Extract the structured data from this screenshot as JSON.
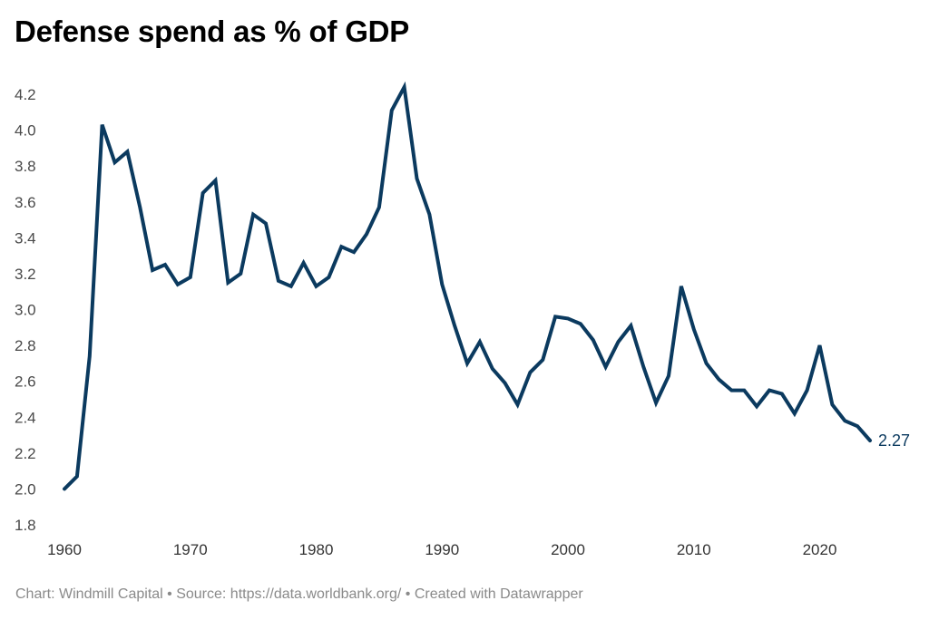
{
  "chart_data": {
    "type": "line",
    "title": "Defense spend as % of GDP",
    "xlabel": "",
    "ylabel": "",
    "ylim": [
      1.8,
      4.2
    ],
    "xlim": [
      1960,
      2024
    ],
    "grid": false,
    "yticks": [
      "4.2",
      "4.0",
      "3.8",
      "3.6",
      "3.4",
      "3.2",
      "3.0",
      "2.8",
      "2.6",
      "2.4",
      "2.2",
      "2.0",
      "1.8"
    ],
    "xticks": [
      "1960",
      "1970",
      "1980",
      "1990",
      "2000",
      "2010",
      "2020"
    ],
    "series": [
      {
        "name": "Defense spend as % of GDP",
        "color": "#0b3a5f",
        "end_label": "2.27",
        "x": [
          1960,
          1961,
          1962,
          1963,
          1964,
          1965,
          1966,
          1967,
          1968,
          1969,
          1970,
          1971,
          1972,
          1973,
          1974,
          1975,
          1976,
          1977,
          1978,
          1979,
          1980,
          1981,
          1982,
          1983,
          1984,
          1985,
          1986,
          1987,
          1988,
          1989,
          1990,
          1991,
          1992,
          1993,
          1994,
          1995,
          1996,
          1997,
          1998,
          1999,
          2000,
          2001,
          2002,
          2003,
          2004,
          2005,
          2006,
          2007,
          2008,
          2009,
          2010,
          2011,
          2012,
          2013,
          2014,
          2015,
          2016,
          2017,
          2018,
          2019,
          2020,
          2021,
          2022,
          2023,
          2024
        ],
        "values": [
          2.0,
          2.07,
          2.74,
          4.03,
          3.82,
          3.88,
          3.57,
          3.22,
          3.25,
          3.14,
          3.18,
          3.65,
          3.72,
          3.15,
          3.2,
          3.53,
          3.48,
          3.16,
          3.13,
          3.26,
          3.13,
          3.18,
          3.35,
          3.32,
          3.42,
          3.57,
          4.11,
          4.24,
          3.73,
          3.53,
          3.14,
          2.91,
          2.7,
          2.82,
          2.67,
          2.59,
          2.47,
          2.65,
          2.72,
          2.96,
          2.95,
          2.92,
          2.83,
          2.68,
          2.82,
          2.91,
          2.68,
          2.48,
          2.63,
          3.13,
          2.89,
          2.7,
          2.61,
          2.55,
          2.55,
          2.46,
          2.55,
          2.53,
          2.42,
          2.55,
          2.8,
          2.47,
          2.38,
          2.35,
          2.27
        ]
      }
    ]
  },
  "footer": {
    "text": "Chart: Windmill Capital • Source: https://data.worldbank.org/ • Created with Datawrapper"
  }
}
